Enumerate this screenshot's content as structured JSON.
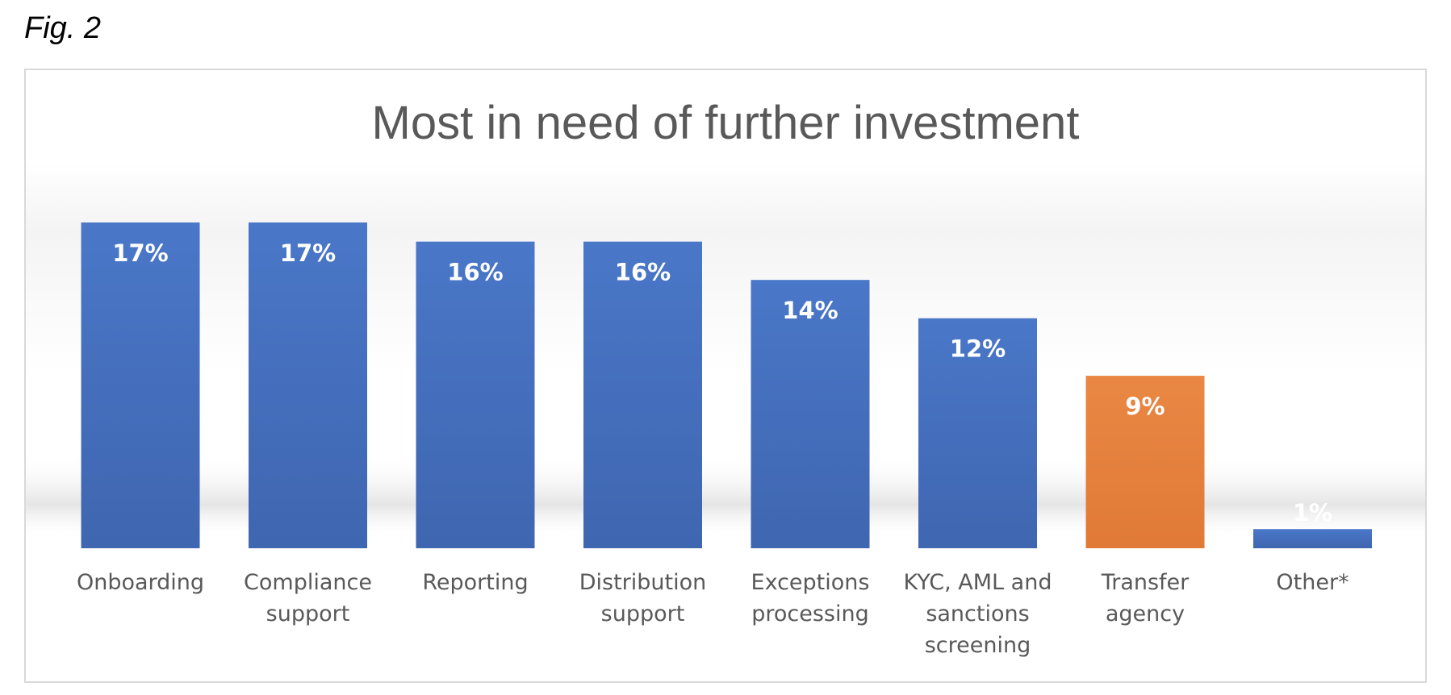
{
  "figure": {
    "label": "Fig. 2"
  },
  "chart_data": {
    "type": "bar",
    "title": "Most in need of further investment",
    "xlabel": "",
    "ylabel": "",
    "ylim": [
      0,
      17.5
    ],
    "grid": false,
    "legend": "none",
    "categories": [
      "Onboarding",
      "Compliance support",
      "Reporting",
      "Distribution support",
      "Exceptions processing",
      "KYC, AML and sanctions screening",
      "Transfer agency",
      "Other*"
    ],
    "category_lines": [
      [
        "Onboarding"
      ],
      [
        "Compliance",
        "support"
      ],
      [
        "Reporting"
      ],
      [
        "Distribution",
        "support"
      ],
      [
        "Exceptions",
        "processing"
      ],
      [
        "KYC, AML and",
        "sanctions",
        "screening"
      ],
      [
        "Transfer",
        "agency"
      ],
      [
        "Other*"
      ]
    ],
    "values": [
      17,
      17,
      16,
      16,
      14,
      12,
      9,
      1
    ],
    "value_labels": [
      "17%",
      "17%",
      "16%",
      "16%",
      "14%",
      "12%",
      "9%",
      "1%"
    ],
    "colors": [
      "#4472c4",
      "#4472c4",
      "#4472c4",
      "#4472c4",
      "#4472c4",
      "#4472c4",
      "#ed7d31",
      "#4472c4"
    ]
  }
}
